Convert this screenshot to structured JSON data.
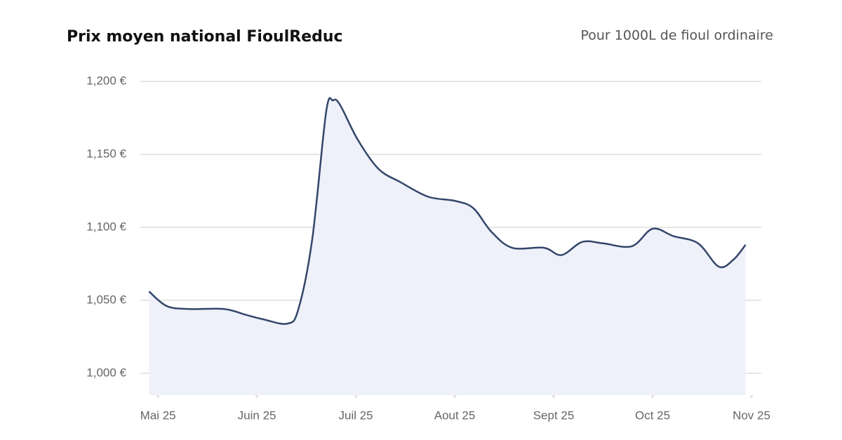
{
  "chart_data": {
    "type": "area",
    "title": "Prix moyen national FioulReduc",
    "subtitle": "Pour 1000L de fioul ordinaire",
    "x": [
      -0.09,
      0.09,
      0.32,
      0.67,
      0.89,
      1.06,
      1.31,
      1.42,
      1.56,
      1.7,
      1.77,
      1.84,
      2.02,
      2.23,
      2.45,
      2.73,
      3.01,
      3.19,
      3.37,
      3.58,
      3.9,
      4.08,
      4.29,
      4.5,
      4.79,
      5.0,
      5.21,
      5.46,
      5.67,
      5.82,
      5.94
    ],
    "values": [
      1056,
      1046,
      1044,
      1044,
      1040,
      1037,
      1034,
      1044,
      1092,
      1179,
      1187,
      1184,
      1160,
      1140,
      1131,
      1121,
      1118,
      1113,
      1097,
      1086,
      1086,
      1081,
      1090,
      1089,
      1087,
      1099,
      1094,
      1089,
      1073,
      1078,
      1088
    ],
    "color": "#34466b",
    "fill": "#eef1f9",
    "xlim": [
      -0.1,
      6
    ],
    "xticks": [
      {
        "value": 0,
        "label": "Mai 25"
      },
      {
        "value": 1,
        "label": "Juin 25"
      },
      {
        "value": 2,
        "label": "Juil 25"
      },
      {
        "value": 3,
        "label": "Aout 25"
      },
      {
        "value": 4,
        "label": "Sept 25"
      },
      {
        "value": 5,
        "label": "Oct 25"
      },
      {
        "value": 6,
        "label": "Nov 25"
      }
    ],
    "ylim": [
      985,
      1200
    ],
    "yticks": [
      {
        "value": 1000,
        "label": "1,000 €"
      },
      {
        "value": 1050,
        "label": "1,050 €"
      },
      {
        "value": 1100,
        "label": "1,100 €"
      },
      {
        "value": 1150,
        "label": "1,150 €"
      },
      {
        "value": 1200,
        "label": "1,200 €"
      }
    ],
    "grid": true
  }
}
